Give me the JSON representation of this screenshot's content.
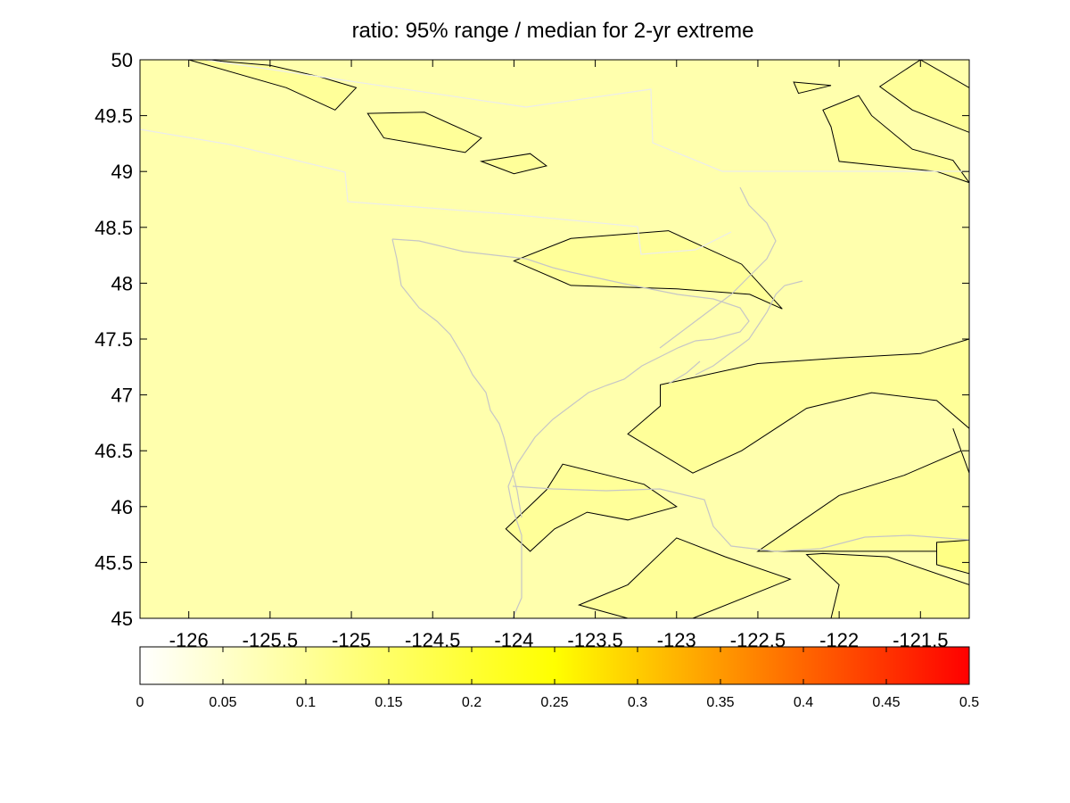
{
  "chart_data": {
    "type": "heatmap",
    "title": "ratio: 95% range / median for 2-yr extreme",
    "xlabel": "",
    "ylabel": "",
    "xlim": [
      -126.3,
      -121.2
    ],
    "ylim": [
      45,
      50
    ],
    "x_ticks": [
      "-126",
      "-125.5",
      "-125",
      "-124.5",
      "-124",
      "-123.5",
      "-123",
      "-122.5",
      "-122",
      "-121.5"
    ],
    "y_ticks": [
      "45",
      "45.5",
      "46",
      "46.5",
      "47",
      "47.5",
      "48",
      "48.5",
      "49",
      "49.5",
      "50"
    ],
    "colorbar": {
      "min": 0,
      "max": 0.5,
      "ticks": [
        "0",
        "0.05",
        "0.1",
        "0.15",
        "0.2",
        "0.25",
        "0.3",
        "0.35",
        "0.4",
        "0.45",
        "0.5"
      ],
      "colormap": [
        "#ffffff",
        "#ffff00",
        "#ff0000"
      ]
    },
    "background_value": 0.08,
    "contour_regions": [
      {
        "value": 0.1,
        "points": [
          [
            -126.0,
            50.0
          ],
          [
            -125.4,
            49.75
          ],
          [
            -125.1,
            49.55
          ],
          [
            -124.97,
            49.75
          ],
          [
            -125.2,
            49.85
          ],
          [
            -125.5,
            49.95
          ],
          [
            -125.9,
            50.0
          ]
        ]
      },
      {
        "value": 0.1,
        "points": [
          [
            -124.9,
            49.52
          ],
          [
            -124.55,
            49.53
          ],
          [
            -124.2,
            49.3
          ],
          [
            -124.3,
            49.17
          ],
          [
            -124.6,
            49.25
          ],
          [
            -124.8,
            49.3
          ]
        ]
      },
      {
        "value": 0.1,
        "points": [
          [
            -124.2,
            49.09
          ],
          [
            -123.9,
            49.16
          ],
          [
            -123.8,
            49.05
          ],
          [
            -124.0,
            48.98
          ]
        ]
      },
      {
        "value": 0.1,
        "points": [
          [
            -123.05,
            48.47
          ],
          [
            -122.6,
            48.17
          ],
          [
            -122.35,
            47.77
          ],
          [
            -122.55,
            47.9
          ],
          [
            -123.0,
            47.95
          ],
          [
            -123.65,
            47.98
          ],
          [
            -124.0,
            48.2
          ],
          [
            -123.65,
            48.4
          ]
        ]
      },
      {
        "value": 0.1,
        "points": [
          [
            -122.28,
            49.8
          ],
          [
            -122.05,
            49.77
          ],
          [
            -122.25,
            49.7
          ]
        ]
      },
      {
        "value": 0.1,
        "points": [
          [
            -121.5,
            50.0
          ],
          [
            -121.2,
            49.75
          ],
          [
            -121.2,
            49.35
          ],
          [
            -121.55,
            49.55
          ],
          [
            -121.75,
            49.76
          ]
        ]
      },
      {
        "value": 0.1,
        "points": [
          [
            -121.88,
            49.68
          ],
          [
            -121.8,
            49.5
          ],
          [
            -121.55,
            49.2
          ],
          [
            -121.3,
            49.1
          ],
          [
            -121.2,
            48.9
          ],
          [
            -121.4,
            49.0
          ],
          [
            -122.0,
            49.09
          ],
          [
            -122.05,
            49.4
          ],
          [
            -122.1,
            49.55
          ]
        ]
      },
      {
        "value": 0.1,
        "points": [
          [
            -123.1,
            47.09
          ],
          [
            -122.5,
            47.28
          ],
          [
            -122.0,
            47.33
          ],
          [
            -121.5,
            47.37
          ],
          [
            -121.2,
            47.5
          ],
          [
            -121.2,
            46.7
          ],
          [
            -121.4,
            46.95
          ],
          [
            -121.8,
            47.02
          ],
          [
            -122.2,
            46.88
          ],
          [
            -122.6,
            46.5
          ],
          [
            -122.9,
            46.3
          ],
          [
            -123.3,
            46.65
          ],
          [
            -123.1,
            46.9
          ]
        ]
      },
      {
        "value": 0.1,
        "points": [
          [
            -121.3,
            46.7
          ],
          [
            -121.25,
            46.5
          ],
          [
            -121.6,
            46.28
          ],
          [
            -122.0,
            46.1
          ],
          [
            -122.3,
            45.8
          ],
          [
            -122.5,
            45.6
          ],
          [
            -121.8,
            45.6
          ],
          [
            -121.2,
            45.6
          ],
          [
            -121.2,
            46.3
          ]
        ]
      },
      {
        "value": 0.1,
        "points": [
          [
            -123.7,
            46.38
          ],
          [
            -123.2,
            46.2
          ],
          [
            -123.0,
            46.0
          ],
          [
            -123.3,
            45.88
          ],
          [
            -123.55,
            45.95
          ],
          [
            -123.75,
            45.8
          ],
          [
            -123.9,
            45.6
          ],
          [
            -124.05,
            45.8
          ],
          [
            -123.8,
            46.15
          ]
        ]
      },
      {
        "value": 0.1,
        "points": [
          [
            -123.6,
            45.12
          ],
          [
            -123.3,
            45.0
          ],
          [
            -122.9,
            45.0
          ],
          [
            -122.3,
            45.35
          ],
          [
            -122.7,
            45.55
          ],
          [
            -123.0,
            45.72
          ],
          [
            -123.3,
            45.3
          ],
          [
            -123.5,
            45.18
          ]
        ]
      },
      {
        "value": 0.1,
        "points": [
          [
            -122.05,
            45.0
          ],
          [
            -121.2,
            45.0
          ],
          [
            -121.2,
            45.3
          ],
          [
            -121.7,
            45.55
          ],
          [
            -122.1,
            45.58
          ],
          [
            -122.2,
            45.57
          ],
          [
            -122.0,
            45.3
          ]
        ]
      },
      {
        "value": 0.12,
        "points": [
          [
            -121.4,
            45.68
          ],
          [
            -121.2,
            45.7
          ],
          [
            -121.2,
            45.4
          ],
          [
            -121.4,
            45.48
          ]
        ]
      }
    ]
  }
}
